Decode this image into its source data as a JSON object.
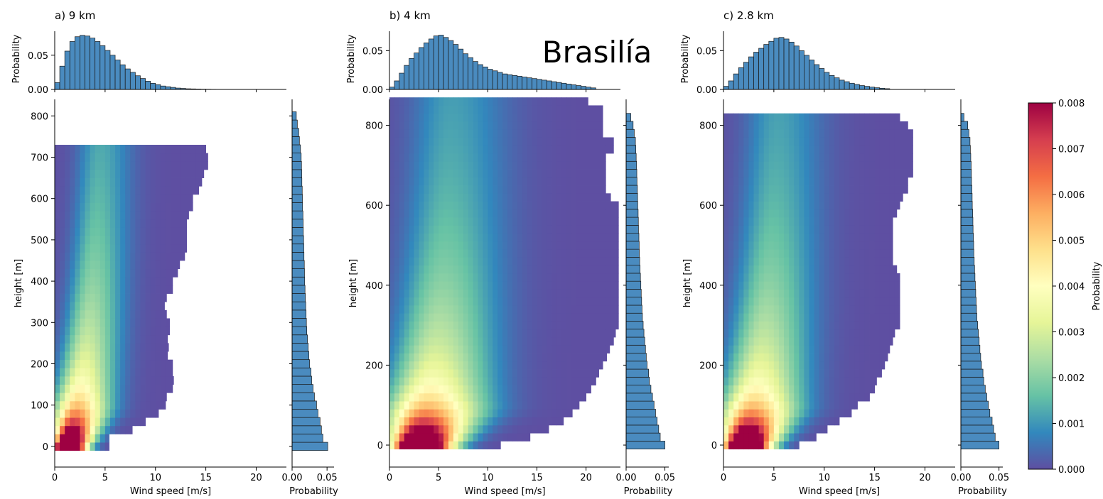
{
  "figure": {
    "annotation": "Brasilía"
  },
  "colors": {
    "bar_fill": "#4a8bbf",
    "bar_edge": "#1a1a1a",
    "colormap": [
      "#5e4fa2",
      "#3288bd",
      "#66c2a5",
      "#abdda4",
      "#e6f598",
      "#ffffbf",
      "#fee08b",
      "#fdae61",
      "#f46d43",
      "#d53e4f",
      "#9e0142"
    ]
  },
  "colorbar": {
    "label": "Probability",
    "min": 0,
    "max": 0.008,
    "ticks": [
      "0.000",
      "0.001",
      "0.002",
      "0.003",
      "0.004",
      "0.005",
      "0.006",
      "0.007",
      "0.008"
    ]
  },
  "chart_data": [
    {
      "type": "heatmap",
      "title": "a) 9 km",
      "xlabel": "Wind speed [m/s]",
      "ylabel": "height [m]",
      "xlim": [
        0,
        23
      ],
      "ylim": [
        -50,
        840
      ],
      "xticks": [
        "0",
        "5",
        "10",
        "15",
        "20"
      ],
      "yticks": [
        "0",
        "100",
        "200",
        "300",
        "400",
        "500",
        "600",
        "700",
        "800"
      ],
      "ytick_values": [
        0,
        100,
        200,
        300,
        400,
        500,
        600,
        700,
        800
      ],
      "peak_speed": 1.2,
      "spread": 2.2,
      "max_speed": [
        5.4,
        5.4,
        7.7,
        9,
        10.3,
        11,
        11.1,
        11.7,
        11.8,
        11.7,
        11.7,
        11.2,
        11.3,
        11.2,
        11.4,
        11.4,
        11.1,
        10.9,
        11.1,
        11.7,
        11.7,
        12.2,
        12.4,
        12.9,
        13.1,
        13.1,
        13.1,
        13.1,
        13.3,
        13.7,
        13.7,
        14.3,
        14.6,
        14.8,
        15.2,
        15.2,
        15
      ],
      "top_hist": {
        "ylabel": "Probability",
        "ylim": [
          0,
          0.085
        ],
        "yticks": [
          "0.00",
          "0.05"
        ],
        "ytick_values": [
          0,
          0.05
        ],
        "bin_width": 0.5,
        "values": [
          0.01,
          0.034,
          0.056,
          0.07,
          0.077,
          0.079,
          0.078,
          0.075,
          0.07,
          0.064,
          0.057,
          0.05,
          0.043,
          0.036,
          0.03,
          0.025,
          0.02,
          0.016,
          0.012,
          0.009,
          0.007,
          0.005,
          0.004,
          0.003,
          0.002,
          0.0015,
          0.001,
          0.0008,
          0.0006,
          0.0004,
          0.0003,
          0.0002
        ]
      },
      "side_hist": {
        "xlabel": "Probability",
        "xlim": [
          0,
          0.06
        ],
        "xticks": [
          "0.00",
          "0.05"
        ],
        "xtick_values": [
          0,
          0.05
        ],
        "bin_height": 20,
        "values": [
          0.051,
          0.044,
          0.042,
          0.04,
          0.037,
          0.035,
          0.032,
          0.03,
          0.028,
          0.027,
          0.025,
          0.024,
          0.023,
          0.022,
          0.021,
          0.0205,
          0.02,
          0.0195,
          0.019,
          0.0185,
          0.018,
          0.0178,
          0.0175,
          0.017,
          0.0168,
          0.0165,
          0.016,
          0.0158,
          0.0155,
          0.015,
          0.0148,
          0.0145,
          0.014,
          0.0138,
          0.0135,
          0.013,
          0.012,
          0.0105,
          0.0095,
          0.0075,
          0.006
        ]
      }
    },
    {
      "type": "heatmap",
      "title": "b) 4 km",
      "xlabel": "Wind speed [m/s]",
      "ylabel": "height [m]",
      "xlim": [
        0,
        23.5
      ],
      "ylim": [
        -55,
        865
      ],
      "xticks": [
        "0",
        "5",
        "10",
        "15",
        "20"
      ],
      "yticks": [
        "0",
        "200",
        "400",
        "600",
        "800"
      ],
      "ytick_values": [
        0,
        200,
        400,
        600,
        800
      ],
      "peak_speed": 2.8,
      "spread": 4.0,
      "max_speed": [
        11.3,
        14.3,
        16.2,
        17.7,
        18.6,
        19.3,
        20,
        20.5,
        21,
        21.3,
        21.7,
        22.1,
        22.4,
        22.8,
        23,
        23.3,
        23.3,
        23.3,
        23.3,
        23.3,
        23.3,
        23.3,
        23.3,
        23.3,
        23.3,
        23.3,
        23.3,
        23.3,
        23.3,
        23.3,
        23.3,
        22.5,
        22,
        22,
        22,
        22,
        22,
        22.8,
        22.8,
        21.7,
        21.7,
        21.7,
        21.7,
        20.2
      ],
      "top_hist": {
        "ylabel": "Probability",
        "ylim": [
          0,
          0.075
        ],
        "yticks": [
          "0.00",
          "0.05"
        ],
        "ytick_values": [
          0,
          0.05
        ],
        "bin_width": 0.5,
        "values": [
          0.003,
          0.011,
          0.021,
          0.031,
          0.04,
          0.047,
          0.054,
          0.06,
          0.065,
          0.069,
          0.07,
          0.067,
          0.063,
          0.058,
          0.052,
          0.046,
          0.041,
          0.036,
          0.032,
          0.029,
          0.026,
          0.024,
          0.022,
          0.02,
          0.019,
          0.018,
          0.017,
          0.016,
          0.015,
          0.014,
          0.013,
          0.012,
          0.011,
          0.01,
          0.009,
          0.008,
          0.007,
          0.006,
          0.005,
          0.004,
          0.003,
          0.002
        ]
      },
      "side_hist": {
        "xlabel": "Probability",
        "xlim": [
          0,
          0.055
        ],
        "xticks": [
          "0.00",
          "0.05"
        ],
        "xtick_values": [
          0,
          0.05
        ],
        "bin_height": 20,
        "values": [
          0.05,
          0.044,
          0.042,
          0.04,
          0.038,
          0.036,
          0.034,
          0.032,
          0.03,
          0.029,
          0.027,
          0.026,
          0.025,
          0.024,
          0.023,
          0.022,
          0.021,
          0.0205,
          0.02,
          0.0195,
          0.019,
          0.0185,
          0.018,
          0.0175,
          0.017,
          0.0168,
          0.0165,
          0.016,
          0.0158,
          0.0155,
          0.015,
          0.0148,
          0.0145,
          0.014,
          0.0138,
          0.0135,
          0.013,
          0.0125,
          0.012,
          0.0105,
          0.009,
          0.006
        ]
      }
    },
    {
      "type": "heatmap",
      "title": "c) 2.8 km",
      "xlabel": "Wind speed [m/s]",
      "ylabel": "height [m]",
      "xlim": [
        0,
        23
      ],
      "ylim": [
        -55,
        865
      ],
      "xticks": [
        "0",
        "5",
        "10",
        "15",
        "20"
      ],
      "yticks": [
        "0",
        "200",
        "400",
        "600",
        "800"
      ],
      "ytick_values": [
        0,
        200,
        400,
        600,
        800
      ],
      "peak_speed": 1.9,
      "spread": 3.1,
      "max_speed": [
        7.5,
        9.2,
        10.3,
        11.5,
        12.7,
        13.3,
        14.5,
        15,
        15.2,
        15.7,
        16,
        16.3,
        16.5,
        16.8,
        17,
        17.5,
        17.5,
        17.5,
        17.5,
        17.5,
        17.5,
        17.5,
        17.2,
        16.8,
        16.8,
        16.8,
        16.8,
        16.8,
        16.8,
        17.2,
        17.5,
        17.8,
        18.3,
        18.3,
        18.8,
        18.8,
        18.8,
        18.8,
        18.8,
        18.8,
        18.3,
        17.5
      ],
      "top_hist": {
        "ylabel": "Probability",
        "ylim": [
          0,
          0.075
        ],
        "yticks": [
          "0.00",
          "0.05"
        ],
        "ytick_values": [
          0,
          0.05
        ],
        "bin_width": 0.5,
        "values": [
          0.004,
          0.011,
          0.02,
          0.028,
          0.035,
          0.042,
          0.048,
          0.053,
          0.058,
          0.062,
          0.066,
          0.067,
          0.065,
          0.061,
          0.056,
          0.05,
          0.044,
          0.038,
          0.032,
          0.027,
          0.022,
          0.018,
          0.015,
          0.012,
          0.01,
          0.008,
          0.0065,
          0.005,
          0.004,
          0.003,
          0.0022,
          0.0015,
          0.001
        ]
      },
      "side_hist": {
        "xlabel": "Probability",
        "xlim": [
          0,
          0.055
        ],
        "xticks": [
          "0.00",
          "0.05"
        ],
        "xtick_values": [
          0,
          0.05
        ],
        "bin_height": 20,
        "values": [
          0.05,
          0.045,
          0.043,
          0.041,
          0.038,
          0.036,
          0.034,
          0.032,
          0.03,
          0.029,
          0.027,
          0.026,
          0.025,
          0.024,
          0.023,
          0.022,
          0.021,
          0.0205,
          0.02,
          0.0195,
          0.019,
          0.0185,
          0.018,
          0.0175,
          0.017,
          0.0168,
          0.0165,
          0.016,
          0.0158,
          0.0155,
          0.015,
          0.0148,
          0.0145,
          0.014,
          0.0138,
          0.0135,
          0.013,
          0.0125,
          0.012,
          0.0105,
          0.009,
          0.004
        ]
      }
    }
  ]
}
